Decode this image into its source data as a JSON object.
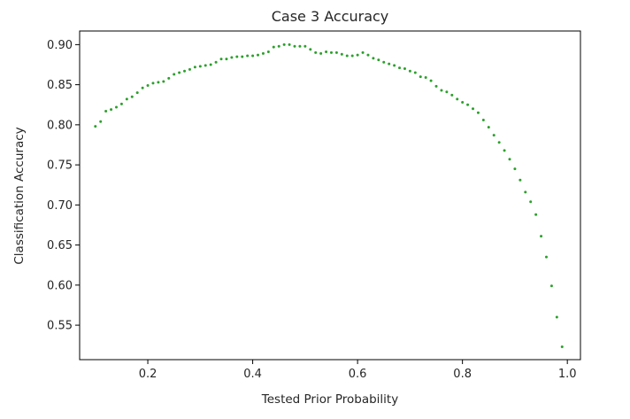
{
  "chart_data": {
    "type": "scatter",
    "title": "Case 3 Accuracy",
    "xlabel": "Tested Prior Probability",
    "ylabel": "Classification Accuracy",
    "xlim": [
      0.07,
      1.025
    ],
    "ylim": [
      0.507,
      0.917
    ],
    "xticks": [
      0.2,
      0.4,
      0.6,
      0.8,
      1.0
    ],
    "xtick_labels": [
      "0.2",
      "0.4",
      "0.6",
      "0.8",
      "1.0"
    ],
    "yticks": [
      0.55,
      0.6,
      0.65,
      0.7,
      0.75,
      0.8,
      0.85,
      0.9
    ],
    "ytick_labels": [
      "0.55",
      "0.60",
      "0.65",
      "0.70",
      "0.75",
      "0.80",
      "0.85",
      "0.90"
    ],
    "grid": false,
    "marker_color": "#2ca02c",
    "x": [
      0.1,
      0.11,
      0.12,
      0.13,
      0.14,
      0.15,
      0.16,
      0.17,
      0.18,
      0.19,
      0.2,
      0.21,
      0.22,
      0.23,
      0.24,
      0.25,
      0.26,
      0.27,
      0.28,
      0.29,
      0.3,
      0.31,
      0.32,
      0.33,
      0.34,
      0.35,
      0.36,
      0.37,
      0.38,
      0.39,
      0.4,
      0.41,
      0.42,
      0.43,
      0.44,
      0.45,
      0.46,
      0.47,
      0.48,
      0.49,
      0.5,
      0.51,
      0.52,
      0.53,
      0.54,
      0.55,
      0.56,
      0.57,
      0.58,
      0.59,
      0.6,
      0.61,
      0.62,
      0.63,
      0.64,
      0.65,
      0.66,
      0.67,
      0.68,
      0.69,
      0.7,
      0.71,
      0.72,
      0.73,
      0.74,
      0.75,
      0.76,
      0.77,
      0.78,
      0.79,
      0.8,
      0.81,
      0.82,
      0.83,
      0.84,
      0.85,
      0.86,
      0.87,
      0.88,
      0.89,
      0.9,
      0.91,
      0.92,
      0.93,
      0.94,
      0.95,
      0.96,
      0.97,
      0.98,
      0.99
    ],
    "y": [
      0.798,
      0.804,
      0.817,
      0.819,
      0.822,
      0.826,
      0.832,
      0.835,
      0.84,
      0.846,
      0.849,
      0.852,
      0.853,
      0.854,
      0.858,
      0.863,
      0.865,
      0.867,
      0.869,
      0.872,
      0.873,
      0.874,
      0.875,
      0.878,
      0.882,
      0.882,
      0.884,
      0.885,
      0.885,
      0.886,
      0.886,
      0.887,
      0.889,
      0.891,
      0.897,
      0.898,
      0.9,
      0.9,
      0.898,
      0.898,
      0.898,
      0.894,
      0.89,
      0.889,
      0.891,
      0.89,
      0.89,
      0.888,
      0.886,
      0.886,
      0.887,
      0.89,
      0.887,
      0.883,
      0.881,
      0.878,
      0.876,
      0.874,
      0.871,
      0.87,
      0.867,
      0.865,
      0.86,
      0.859,
      0.855,
      0.848,
      0.843,
      0.841,
      0.837,
      0.832,
      0.828,
      0.825,
      0.82,
      0.815,
      0.806,
      0.797,
      0.787,
      0.778,
      0.768,
      0.757,
      0.745,
      0.731,
      0.716,
      0.704,
      0.688,
      0.661,
      0.635,
      0.599,
      0.56,
      0.523
    ]
  }
}
